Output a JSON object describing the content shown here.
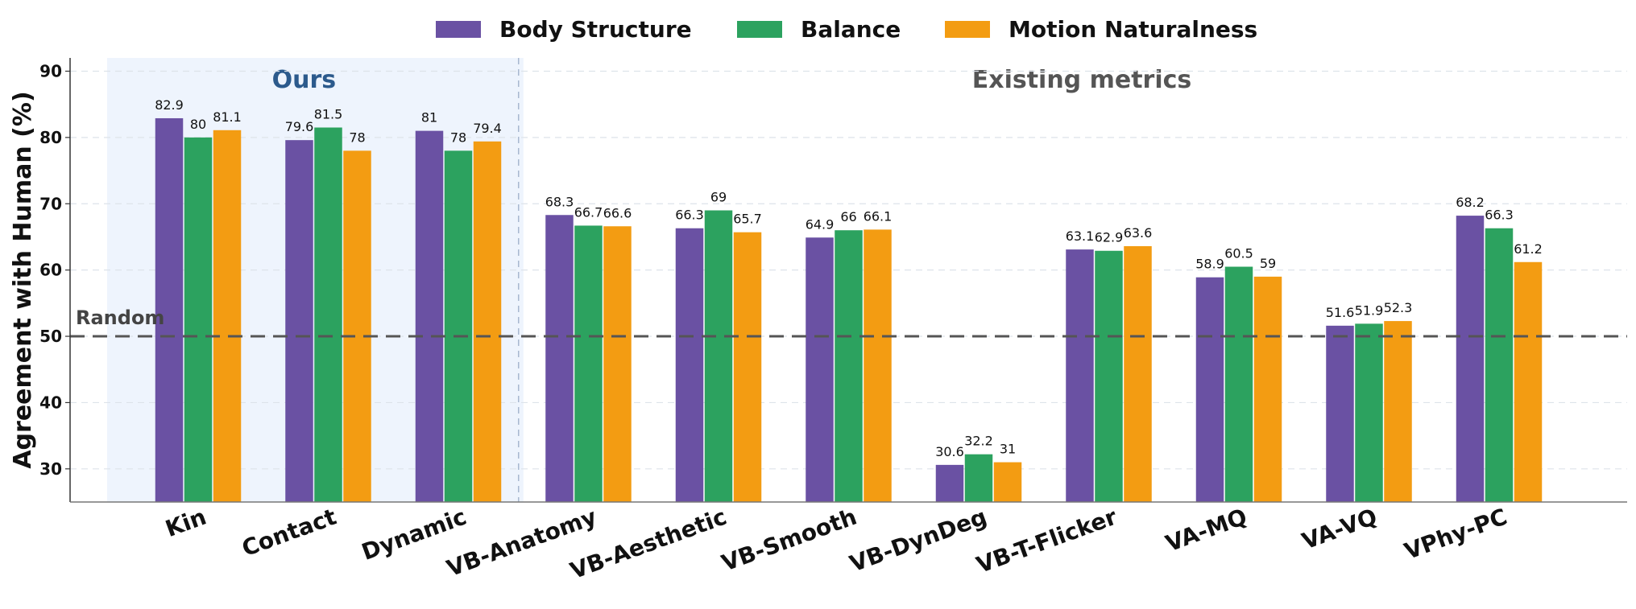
{
  "chart_data": {
    "type": "bar",
    "title": "",
    "xlabel": "",
    "ylabel": "Agreement with Human (%)",
    "ylim": [
      25,
      92
    ],
    "yticks": [
      30,
      40,
      50,
      60,
      70,
      80,
      90
    ],
    "grid": "horizontal dashed",
    "legend": "top-center",
    "categories": [
      "Kin",
      "Contact",
      "Dynamic",
      "VB-Anatomy",
      "VB-Aesthetic",
      "VB-Smooth",
      "VB-DynDeg",
      "VB-T-Flicker",
      "VA-MQ",
      "VA-VQ",
      "VPhy-PC"
    ],
    "series": [
      {
        "name": "Body Structure",
        "color": "#6a51a3",
        "values": [
          82.9,
          79.6,
          81.0,
          68.3,
          66.3,
          64.9,
          30.6,
          63.1,
          58.9,
          51.6,
          68.2
        ]
      },
      {
        "name": "Balance",
        "color": "#2ca25f",
        "values": [
          80.0,
          81.5,
          78.0,
          66.7,
          69.0,
          66.0,
          32.2,
          62.9,
          60.5,
          51.9,
          66.3
        ]
      },
      {
        "name": "Motion Naturalness",
        "color": "#f39c12",
        "values": [
          81.1,
          78.0,
          79.4,
          66.6,
          65.7,
          66.1,
          31.0,
          63.6,
          59.0,
          52.3,
          61.2
        ]
      }
    ],
    "reference_line": {
      "value": 50,
      "label": "Random"
    },
    "regions": [
      {
        "label": "Ours",
        "categories": [
          "Kin",
          "Contact",
          "Dynamic"
        ],
        "color": "#2c5a8c",
        "fill": "#eef4fd"
      },
      {
        "label": "Existing metrics",
        "categories": [
          "VB-Anatomy",
          "VB-Aesthetic",
          "VB-Smooth",
          "VB-DynDeg",
          "VB-T-Flicker",
          "VA-MQ",
          "VA-VQ",
          "VPhy-PC"
        ],
        "color": "#555555"
      }
    ]
  }
}
